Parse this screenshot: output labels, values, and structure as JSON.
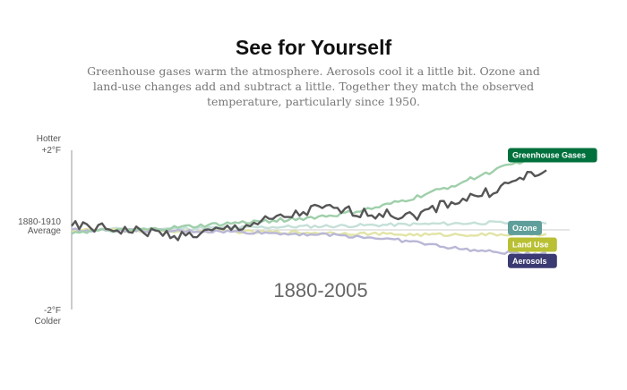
{
  "header": {
    "title": "See for Yourself",
    "subtitle": "Greenhouse gases warm the atmosphere. Aerosols cool it a little bit. Ozone and land-use changes add and subtract a little. Together they match the observed temperature, particularly since 1950."
  },
  "chart_data": {
    "type": "line",
    "title": "See for Yourself",
    "period_label": "1880-2005",
    "x_range": [
      1880,
      2005
    ],
    "ylim": [
      -2,
      2
    ],
    "y_labels": {
      "top": "Hotter",
      "top_tick": "+2°F",
      "mid_line1": "1880-1910",
      "mid_line2": "Average",
      "bottom_tick": "-2°F",
      "bottom": "Colder"
    },
    "grid": false,
    "baseline": 0,
    "series": [
      {
        "name": "Greenhouse Gases",
        "color": "#9fcfaa",
        "label_color": "#00703c",
        "anchors": [
          [
            1880,
            -0.05
          ],
          [
            1900,
            0.0
          ],
          [
            1920,
            0.15
          ],
          [
            1940,
            0.28
          ],
          [
            1950,
            0.38
          ],
          [
            1960,
            0.55
          ],
          [
            1970,
            0.8
          ],
          [
            1980,
            1.1
          ],
          [
            1990,
            1.45
          ],
          [
            2000,
            1.78
          ],
          [
            2005,
            1.92
          ]
        ],
        "noise": 0.05
      },
      {
        "name": "Ozone",
        "color": "#c5e0d8",
        "label_color": "#5f9e9a",
        "anchors": [
          [
            1880,
            0.0
          ],
          [
            1920,
            0.05
          ],
          [
            1950,
            0.1
          ],
          [
            1970,
            0.14
          ],
          [
            1990,
            0.18
          ],
          [
            2005,
            0.16
          ]
        ],
        "noise": 0.04
      },
      {
        "name": "Land Use",
        "color": "#e2e4a6",
        "label_color": "#b9c034",
        "anchors": [
          [
            1880,
            0.0
          ],
          [
            1920,
            -0.04
          ],
          [
            1950,
            -0.08
          ],
          [
            1970,
            -0.12
          ],
          [
            1990,
            -0.12
          ],
          [
            2005,
            -0.1
          ]
        ],
        "noise": 0.04
      },
      {
        "name": "Aerosols",
        "color": "#b9b7d6",
        "label_color": "#3b3a72",
        "anchors": [
          [
            1880,
            0.0
          ],
          [
            1920,
            -0.04
          ],
          [
            1940,
            -0.1
          ],
          [
            1950,
            -0.13
          ],
          [
            1960,
            -0.2
          ],
          [
            1970,
            -0.3
          ],
          [
            1980,
            -0.45
          ],
          [
            1990,
            -0.55
          ],
          [
            2000,
            -0.6
          ],
          [
            2005,
            -0.58
          ]
        ],
        "noise": 0.04
      },
      {
        "name": "Observed",
        "color": "#555555",
        "label_color": "",
        "anchors": [
          [
            1880,
            0.1
          ],
          [
            1900,
            -0.05
          ],
          [
            1910,
            -0.15
          ],
          [
            1920,
            0.0
          ],
          [
            1940,
            0.4
          ],
          [
            1945,
            0.55
          ],
          [
            1950,
            0.5
          ],
          [
            1960,
            0.4
          ],
          [
            1970,
            0.35
          ],
          [
            1980,
            0.7
          ],
          [
            1990,
            0.95
          ],
          [
            2000,
            1.35
          ],
          [
            2005,
            1.5
          ]
        ],
        "noise": 0.13
      }
    ]
  }
}
